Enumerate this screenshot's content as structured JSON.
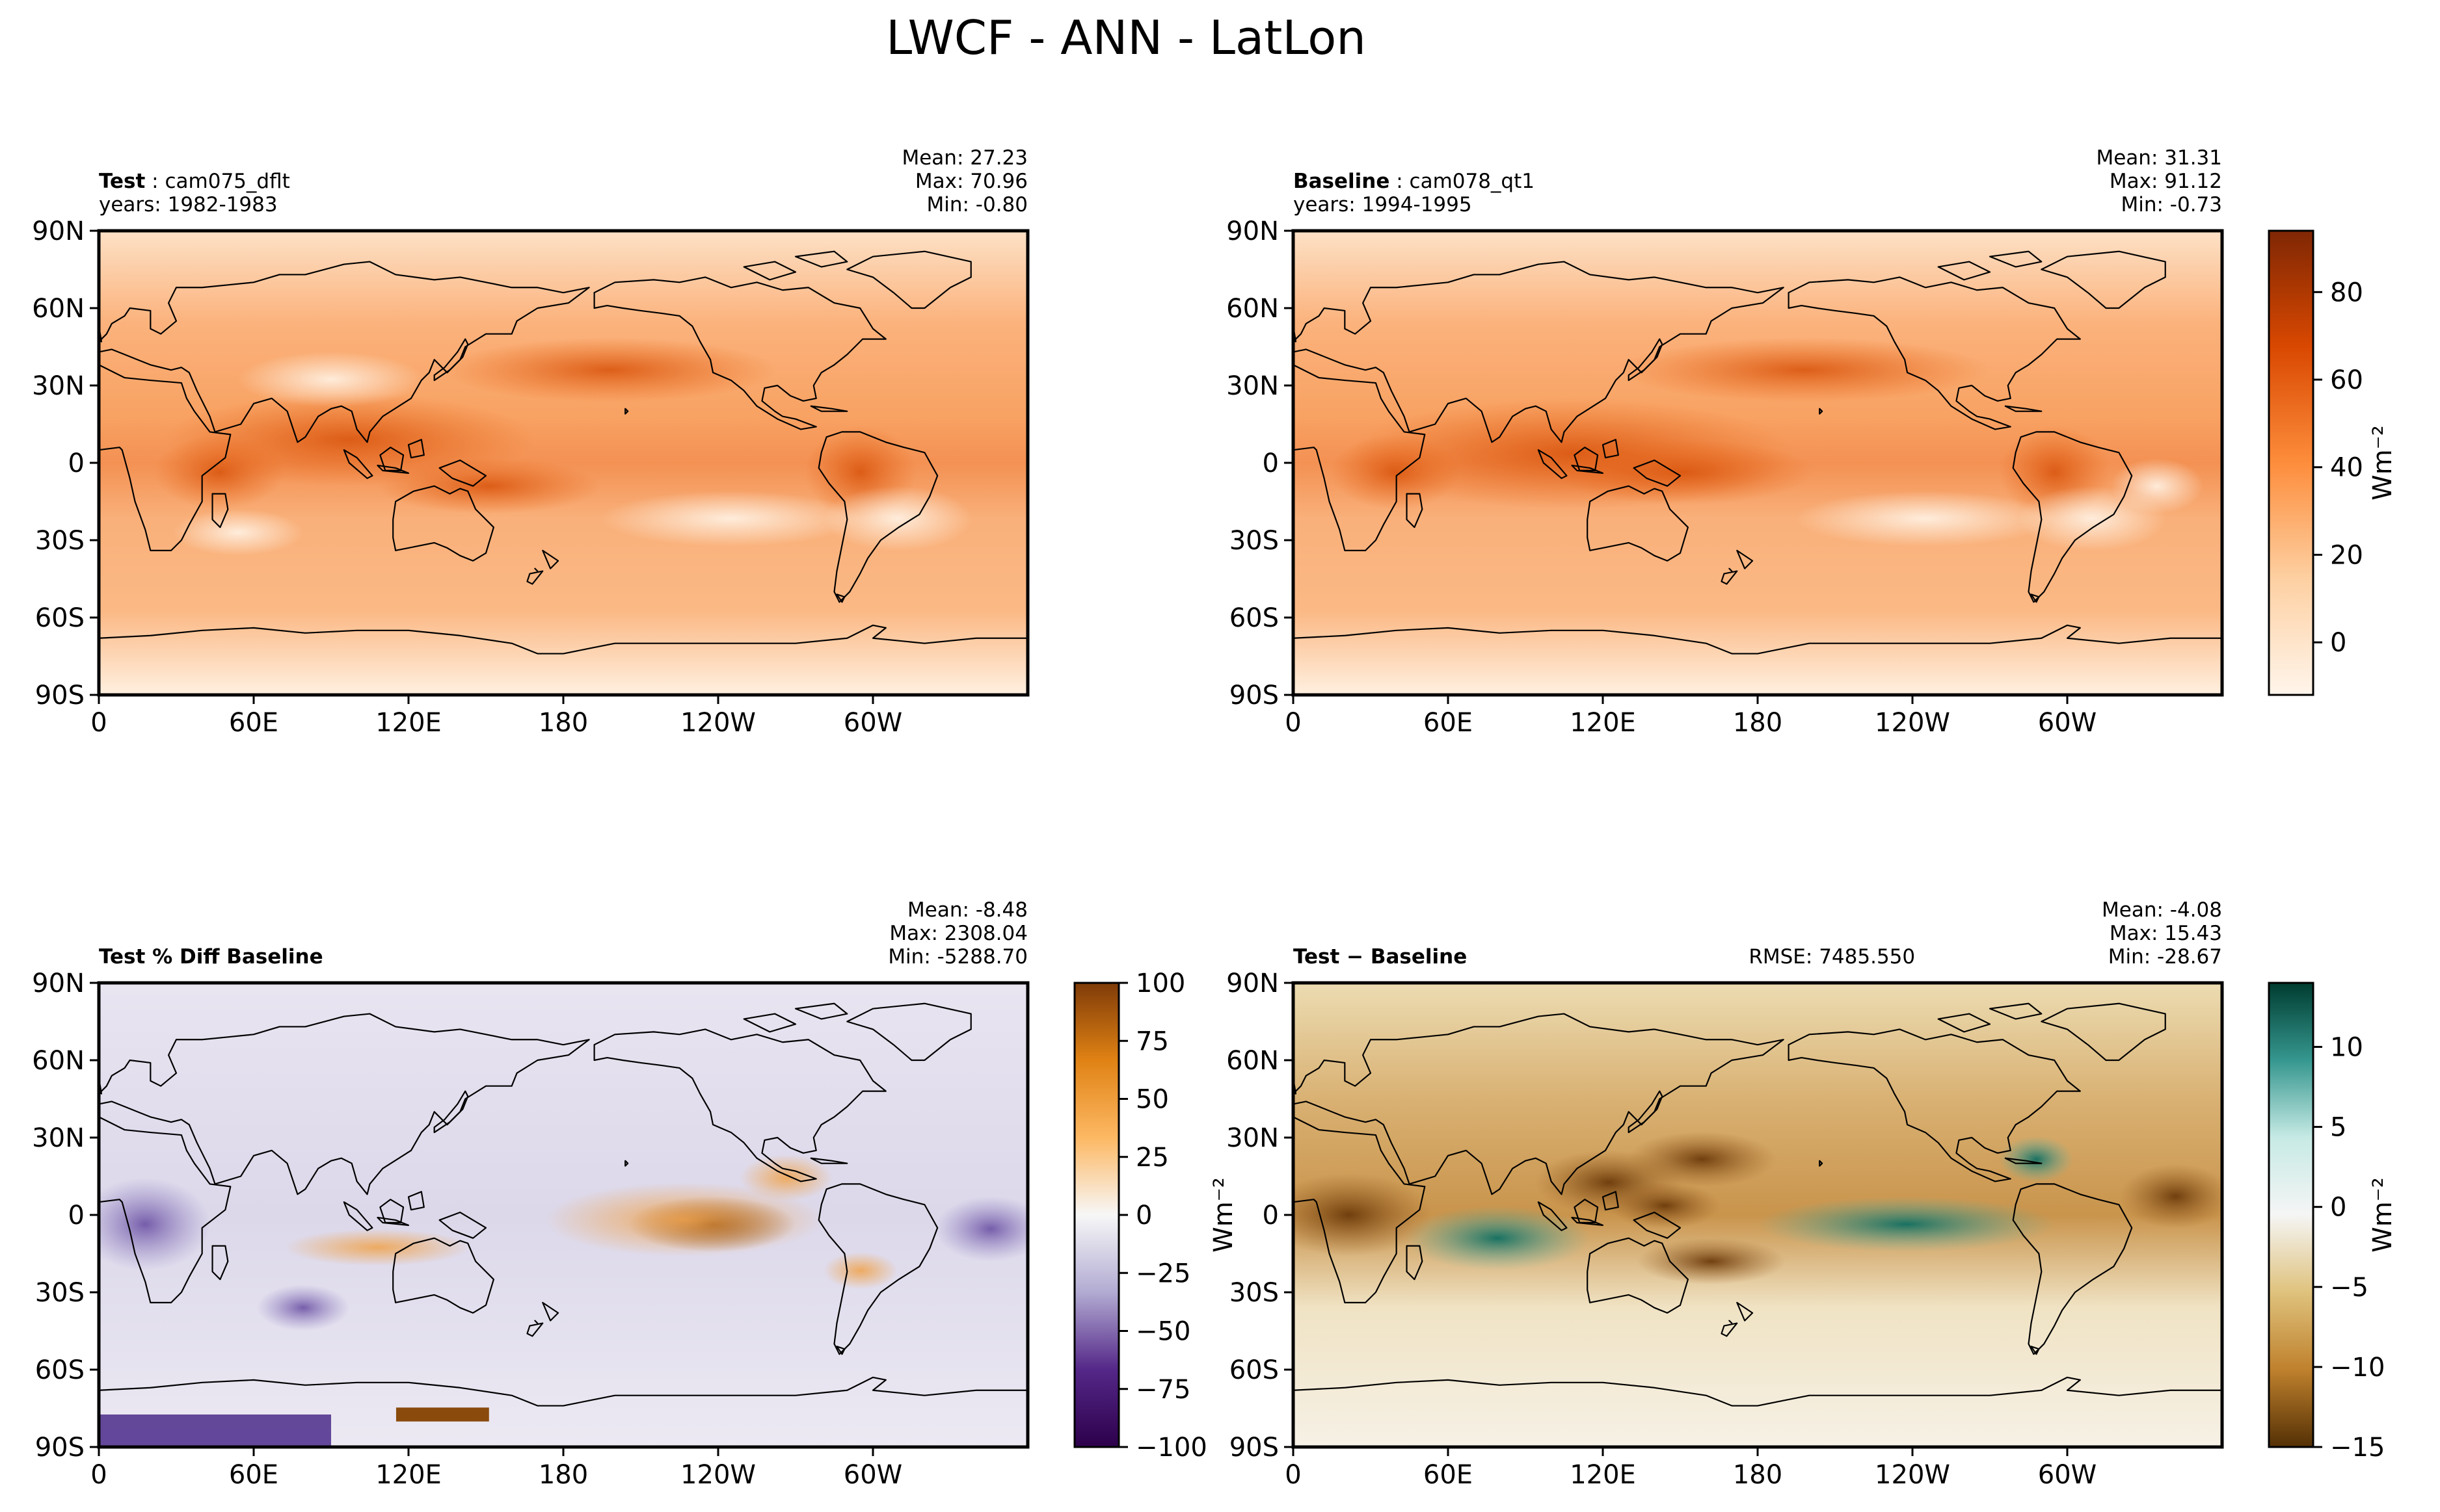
{
  "figure_title": "LWCF - ANN - LatLon",
  "panels": [
    {
      "id": "test",
      "name_label": "Test",
      "name_value": "cam075_dflt",
      "years": "years: 1982-1983",
      "stats": [
        "Mean: 27.23",
        "Max: 70.96",
        "Min: -0.80"
      ],
      "rmse": ""
    },
    {
      "id": "baseline",
      "name_label": "Baseline",
      "name_value": "cam078_qt1",
      "years": "years: 1994-1995",
      "stats": [
        "Mean: 31.31",
        "Max: 91.12",
        "Min: -0.73"
      ],
      "rmse": ""
    },
    {
      "id": "pctdiff",
      "name_label": "Test % Diff Baseline",
      "name_value": "",
      "years": "",
      "stats": [
        "Mean: -8.48",
        "Max: 2308.04",
        "Min: -5288.70"
      ],
      "rmse": ""
    },
    {
      "id": "diff",
      "name_label": "Test − Baseline",
      "name_value": "",
      "years": "",
      "stats": [
        "Mean: -4.08",
        "Max: 15.43",
        "Min: -28.67"
      ],
      "rmse": "RMSE: 7485.550"
    }
  ],
  "colorbars": {
    "field": {
      "unit": "Wm⁻²",
      "ticks": [
        "80",
        "60",
        "40",
        "20",
        "0"
      ],
      "colors": [
        "#7f2704",
        "#d94801",
        "#fd8d3c",
        "#fdd0a2",
        "#fff5eb"
      ]
    },
    "pctdiff": {
      "unit": "Wm⁻²",
      "ticks": [
        "100",
        "75",
        "50",
        "25",
        "0",
        "−25",
        "−50",
        "−75",
        "−100"
      ],
      "colors": [
        "#7f3b08",
        "#e08214",
        "#fdb863",
        "#f7f7f7",
        "#b2abd2",
        "#542788",
        "#2d004b"
      ]
    },
    "diff": {
      "unit": "Wm⁻²",
      "ticks": [
        "10",
        "5",
        "0",
        "−5",
        "−10",
        "−15"
      ],
      "colors": [
        "#003c30",
        "#35978f",
        "#c7eae5",
        "#f5f5f5",
        "#dfc27d",
        "#bf812d",
        "#543005"
      ]
    }
  },
  "chart_data": {
    "type": "heatmap",
    "title": "LWCF - ANN - LatLon",
    "xlabel": "",
    "ylabel": "",
    "x_tick_labels": [
      "0",
      "60E",
      "120E",
      "180",
      "120W",
      "60W"
    ],
    "y_tick_labels": [
      "90N",
      "60N",
      "30N",
      "0",
      "30S",
      "60S",
      "90S"
    ],
    "xlim": [
      0,
      360
    ],
    "ylim": [
      -90,
      90
    ],
    "units": "Wm⁻²",
    "field_colorbar_ticks": [
      80,
      60,
      40,
      20,
      0
    ],
    "pctdiff_colorbar_ticks": [
      100,
      75,
      50,
      25,
      0,
      -25,
      -50,
      -75,
      -100
    ],
    "diff_colorbar_ticks": [
      10,
      5,
      0,
      -5,
      -10,
      -15
    ],
    "panels": [
      {
        "name": "Test",
        "case": "cam075_dflt",
        "mean": 27.23,
        "max": 70.96,
        "min": -0.8
      },
      {
        "name": "Baseline",
        "case": "cam078_qt1",
        "mean": 31.31,
        "max": 91.12,
        "min": -0.73
      },
      {
        "name": "Test % Diff Baseline",
        "mean": -8.48,
        "max": 2308.04,
        "min": -5288.7
      },
      {
        "name": "Test − Baseline",
        "mean": -4.08,
        "max": 15.43,
        "min": -28.67,
        "rmse": 7485.55
      }
    ]
  }
}
